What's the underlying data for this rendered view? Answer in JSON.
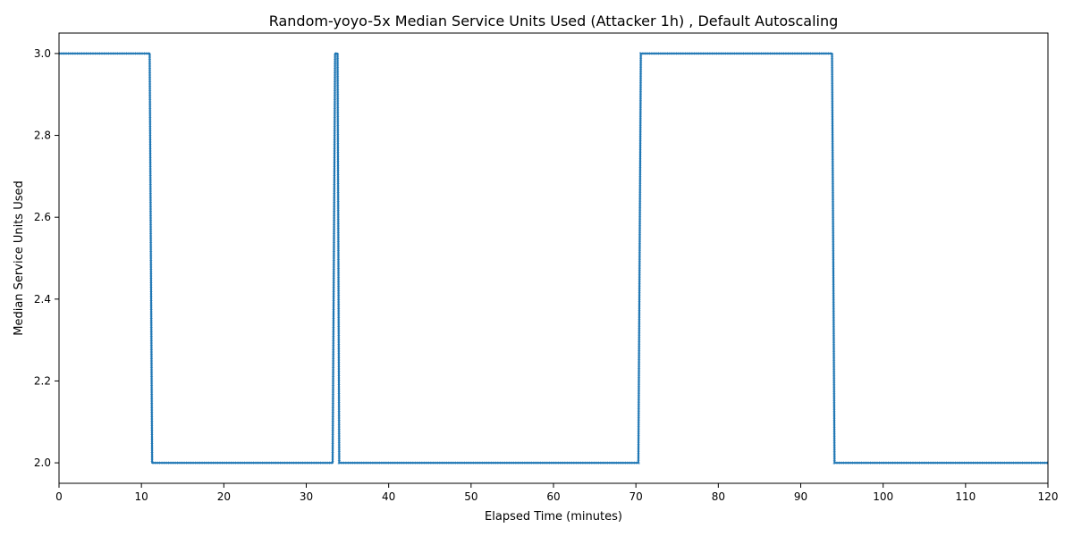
{
  "chart_data": {
    "type": "line",
    "title": "Random-yoyo-5x Median Service Units Used (Attacker 1h) , Default Autoscaling",
    "xlabel": "Elapsed Time (minutes)",
    "ylabel": "Median Service Units Used",
    "xlim": [
      0,
      120
    ],
    "ylim": [
      1.95,
      3.05
    ],
    "x_ticks": [
      0,
      10,
      20,
      30,
      40,
      50,
      60,
      70,
      80,
      90,
      100,
      110,
      120
    ],
    "y_ticks": [
      2.0,
      2.2,
      2.4,
      2.6,
      2.8,
      3.0
    ],
    "x_tick_labels": [
      "0",
      "10",
      "20",
      "30",
      "40",
      "50",
      "60",
      "70",
      "80",
      "90",
      "100",
      "110",
      "120"
    ],
    "y_tick_labels": [
      "2.0",
      "2.2",
      "2.4",
      "2.6",
      "2.8",
      "3.0"
    ],
    "grid": false,
    "legend": "none",
    "line_color": "#1f77b4",
    "series": [
      {
        "x": [
          0,
          11.0,
          11.3,
          33.2,
          33.5,
          33.8,
          34.0,
          70.3,
          70.6,
          93.8,
          94.1,
          120
        ],
        "y": [
          3,
          3,
          2,
          2,
          3,
          3,
          2,
          2,
          3,
          3,
          2,
          2
        ]
      }
    ]
  }
}
